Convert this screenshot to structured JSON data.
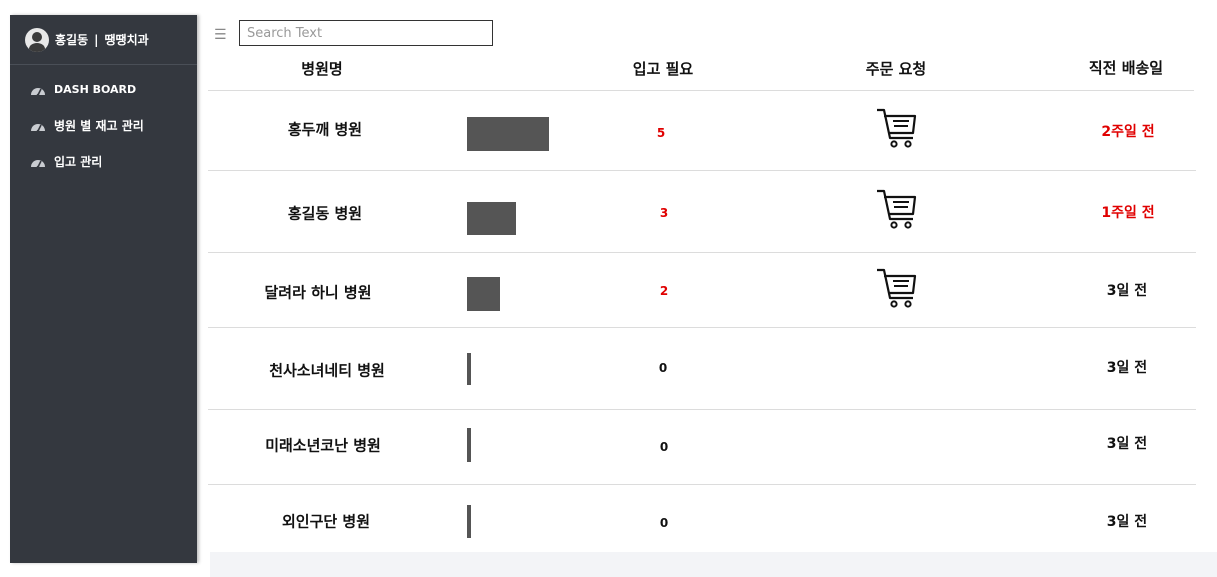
{
  "sidebar": {
    "user_name": "홍길동",
    "separator": "|",
    "clinic_name": "땡땡치과",
    "items": [
      {
        "label": "DASH BOARD",
        "icon": "dashboard-gauge-icon"
      },
      {
        "label": "병원 별 재고 관리",
        "icon": "dashboard-gauge-icon"
      },
      {
        "label": "입고 관리",
        "icon": "dashboard-gauge-icon"
      }
    ]
  },
  "search": {
    "placeholder": "Search Text",
    "value": "",
    "menu_icon": "hamburger-menu-icon"
  },
  "table": {
    "headers": [
      "병원명",
      "입고 필요",
      "주문 요청",
      "직전 배송일"
    ],
    "rows": [
      {
        "name": "홍두깨 병원",
        "needed": 5,
        "qty_label": "5",
        "order_icon": true,
        "last_delivery": "2주일 전",
        "alert": true
      },
      {
        "name": "홍길동 병원",
        "needed": 3,
        "qty_label": "3",
        "order_icon": true,
        "last_delivery": "1주일 전",
        "alert": true
      },
      {
        "name": "달려라 하니 병원",
        "needed": 2,
        "qty_label": "2",
        "order_icon": true,
        "last_delivery": "3일 전",
        "alert": false
      },
      {
        "name": "천사소녀네티 병원",
        "needed": 0,
        "qty_label": "0",
        "order_icon": false,
        "last_delivery": "3일 전",
        "alert": false
      },
      {
        "name": "미래소년코난 병원",
        "needed": 0,
        "qty_label": "0",
        "order_icon": false,
        "last_delivery": "3일 전",
        "alert": false
      },
      {
        "name": "외인구단 병원",
        "needed": 0,
        "qty_label": "0",
        "order_icon": false,
        "last_delivery": "3일 전",
        "alert": false
      }
    ]
  },
  "colors": {
    "sidebar_bg": "#34383f",
    "alert_red": "#e00000",
    "bar_gray": "#555555"
  }
}
